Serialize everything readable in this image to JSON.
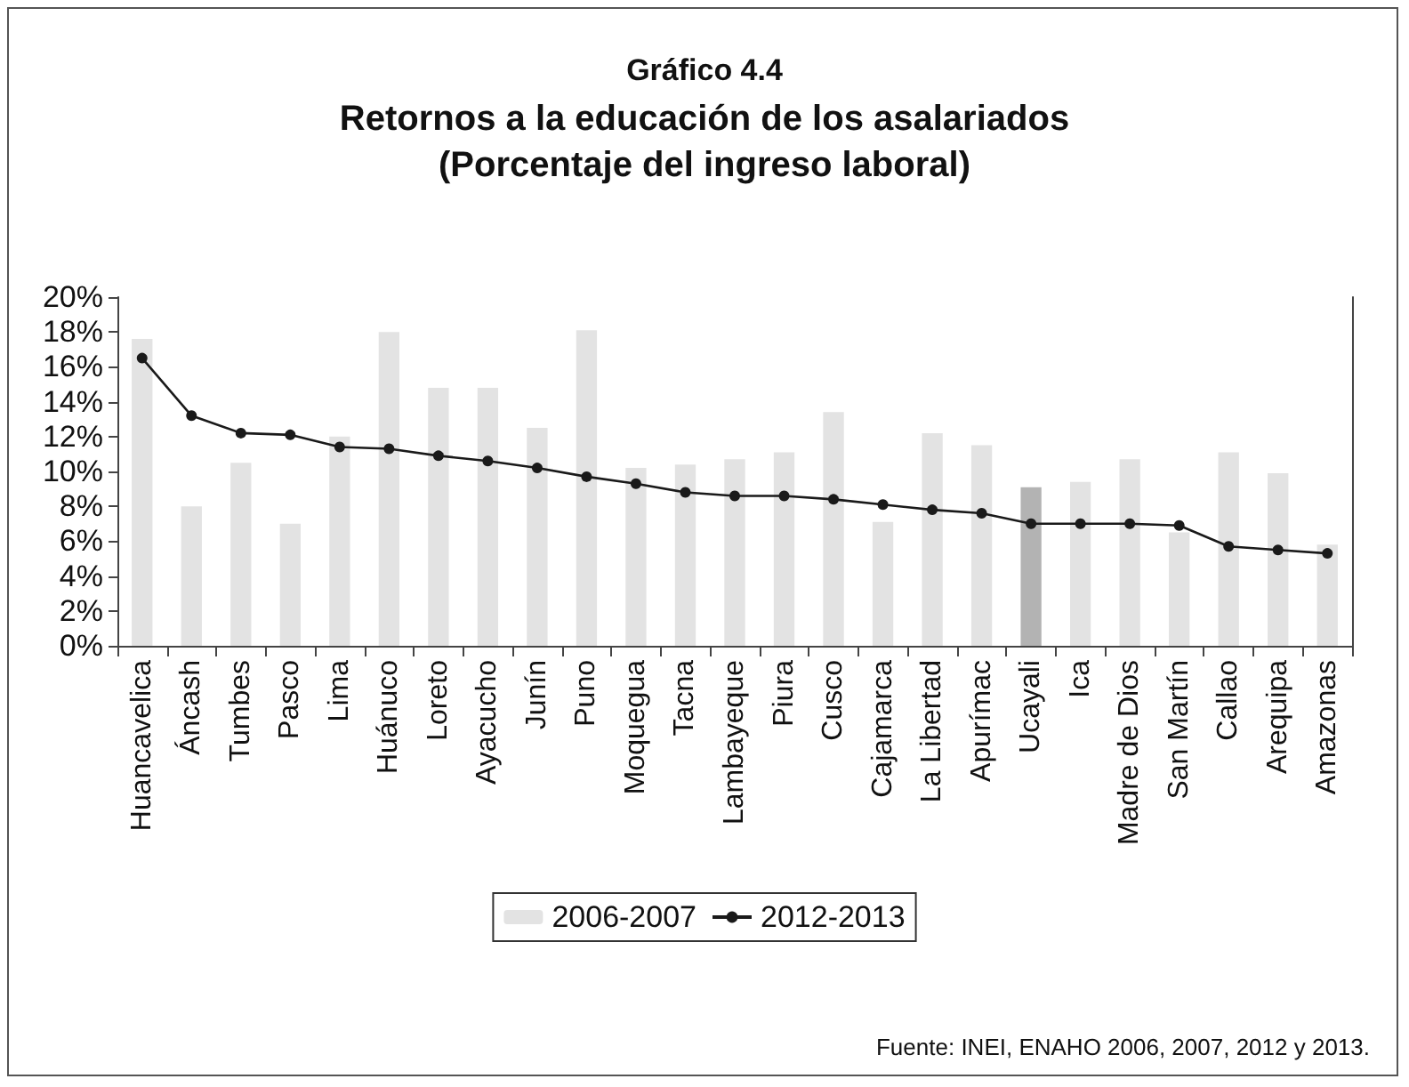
{
  "chart_data": {
    "type": "bar",
    "title": "Gráfico 4.4",
    "subtitle": "Retornos a la educación de los asalariados\n(Porcentaje del ingreso laboral)",
    "categories": [
      "Huancavelica",
      "Áncash",
      "Tumbes",
      "Pasco",
      "Lima",
      "Huánuco",
      "Loreto",
      "Ayacucho",
      "Junín",
      "Puno",
      "Moquegua",
      "Tacna",
      "Lambayeque",
      "Piura",
      "Cusco",
      "Cajamarca",
      "La Libertad",
      "Apurímac",
      "Ucayali",
      "Ica",
      "Madre de Dios",
      "San Martín",
      "Callao",
      "Arequipa",
      "Amazonas"
    ],
    "series": [
      {
        "name": "2006-2007",
        "color": "#e3e3e3",
        "colors": [
          "#e3e3e3",
          "#e3e3e3",
          "#e3e3e3",
          "#e3e3e3",
          "#e3e3e3",
          "#e3e3e3",
          "#e3e3e3",
          "#e3e3e3",
          "#e3e3e3",
          "#e3e3e3",
          "#e3e3e3",
          "#e3e3e3",
          "#e3e3e3",
          "#e3e3e3",
          "#e3e3e3",
          "#e3e3e3",
          "#e3e3e3",
          "#e3e3e3",
          "#b3b3b3",
          "#e3e3e3",
          "#e3e3e3",
          "#e3e3e3",
          "#e3e3e3",
          "#e3e3e3",
          "#e3e3e3"
        ],
        "values": [
          17.6,
          8.0,
          10.5,
          7.0,
          12.0,
          18.0,
          14.8,
          14.8,
          12.5,
          18.1,
          10.2,
          10.4,
          10.7,
          11.1,
          13.4,
          7.1,
          12.2,
          11.5,
          9.1,
          9.4,
          10.7,
          6.5,
          11.1,
          9.9,
          5.8
        ]
      },
      {
        "name": "2012-2013",
        "type": "line",
        "color": "#1a1a1a",
        "marker": "circle",
        "values": [
          16.5,
          13.2,
          12.2,
          12.1,
          11.4,
          11.3,
          10.9,
          10.6,
          10.2,
          9.7,
          9.3,
          8.8,
          8.6,
          8.6,
          8.4,
          8.1,
          7.8,
          7.6,
          7.0,
          7.0,
          7.0,
          6.9,
          5.7,
          5.5,
          5.3
        ]
      }
    ],
    "ylim": [
      0,
      20
    ],
    "yticks": [
      {
        "value": 0,
        "label": "0%"
      },
      {
        "value": 2,
        "label": "2%"
      },
      {
        "value": 4,
        "label": "4%"
      },
      {
        "value": 6,
        "label": "6%"
      },
      {
        "value": 8,
        "label": "8%"
      },
      {
        "value": 10,
        "label": "10%"
      },
      {
        "value": 12,
        "label": "12%"
      },
      {
        "value": 14,
        "label": "14%"
      },
      {
        "value": 16,
        "label": "16%"
      },
      {
        "value": 18,
        "label": "18%"
      },
      {
        "value": 20,
        "label": "20%"
      }
    ],
    "grid": false,
    "legend": "bottom",
    "annotations": [
      "Fuente: INEI, ENAHO 2006, 2007, 2012 y 2013."
    ]
  }
}
